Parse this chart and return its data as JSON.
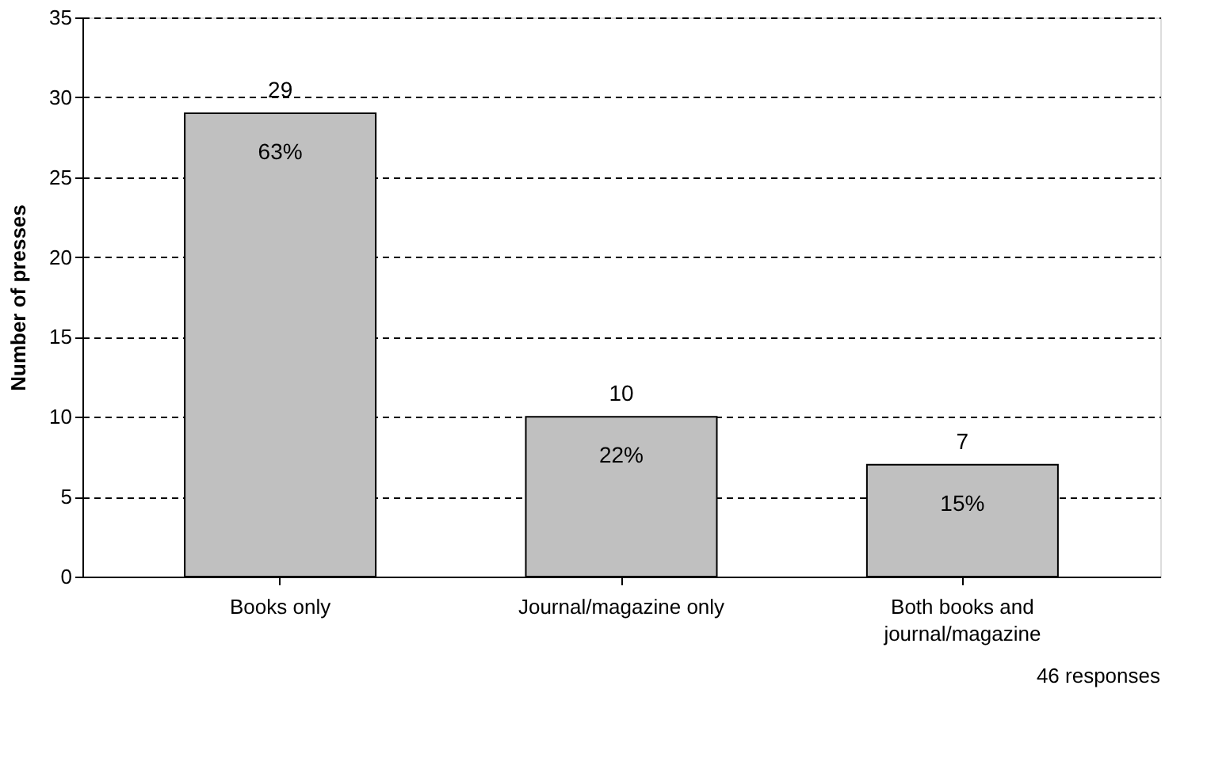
{
  "chart_data": {
    "type": "bar",
    "ylabel": "Number of presses",
    "categories": [
      "Books only",
      "Journal/magazine only",
      "Both books and journal/magazine"
    ],
    "values": [
      29,
      10,
      7
    ],
    "color": "#c0c0c0",
    "data_labels": true,
    "ylim": [
      0,
      35
    ],
    "yticks": [
      0,
      5,
      10,
      15,
      20,
      25,
      30,
      35
    ],
    "grid": "y",
    "annotations": [
      "63%",
      "22%",
      "15%",
      "46 responses"
    ]
  }
}
